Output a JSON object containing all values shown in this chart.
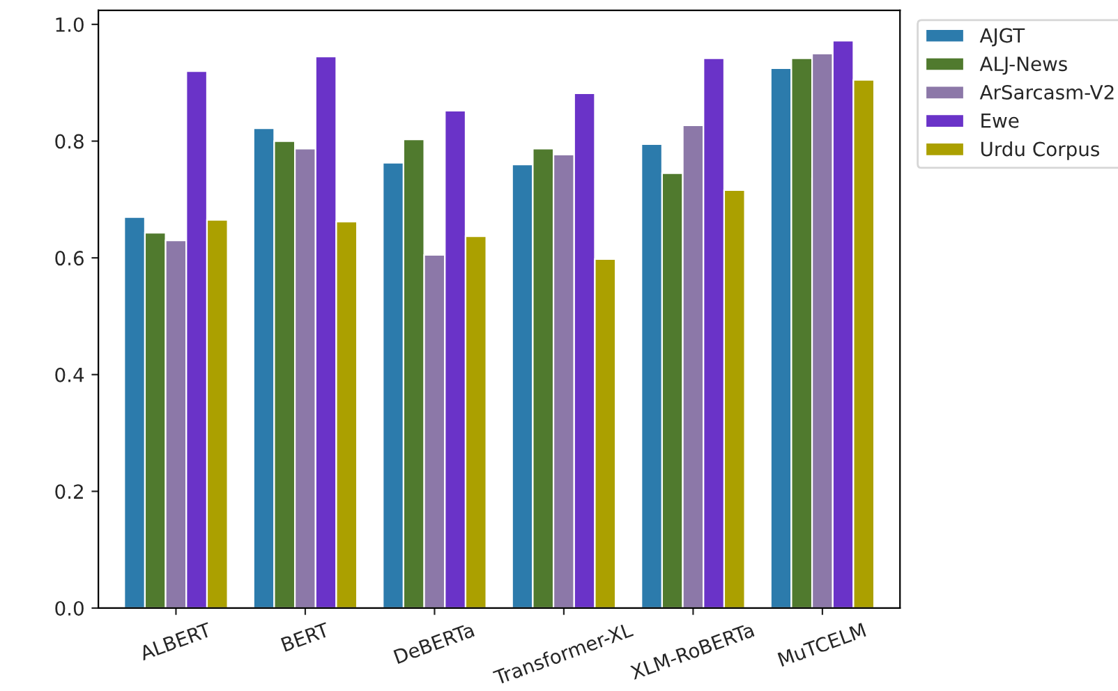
{
  "chart_data": {
    "type": "bar",
    "categories": [
      "ALBERT",
      "BERT",
      "DeBERTa",
      "Transformer-XL",
      "XLM-RoBERTa",
      "MuTCELM"
    ],
    "series": [
      {
        "name": "AJGT",
        "color": "#2c7bac",
        "values": [
          0.67,
          0.822,
          0.763,
          0.76,
          0.795,
          0.925
        ]
      },
      {
        "name": "ALJ-News",
        "color": "#507a2e",
        "values": [
          0.643,
          0.8,
          0.803,
          0.787,
          0.745,
          0.942
        ]
      },
      {
        "name": "ArSarcasm-V2",
        "color": "#8c78a8",
        "values": [
          0.63,
          0.787,
          0.605,
          0.777,
          0.827,
          0.95
        ]
      },
      {
        "name": "Ewe",
        "color": "#6a33c8",
        "values": [
          0.92,
          0.945,
          0.852,
          0.882,
          0.942,
          0.972
        ]
      },
      {
        "name": "Urdu Corpus",
        "color": "#aba000",
        "values": [
          0.665,
          0.662,
          0.637,
          0.598,
          0.716,
          0.905
        ]
      }
    ],
    "ylim": [
      0,
      1.024
    ],
    "yticks": [
      {
        "value": 0,
        "label": "0.0"
      },
      {
        "value": 0.2,
        "label": "0.2"
      },
      {
        "value": 0.4,
        "label": "0.4"
      },
      {
        "value": 0.6,
        "label": "0.6"
      },
      {
        "value": 0.8,
        "label": "0.8"
      },
      {
        "value": 1.0,
        "label": "1.0"
      }
    ],
    "grid": false,
    "legend": "right"
  }
}
